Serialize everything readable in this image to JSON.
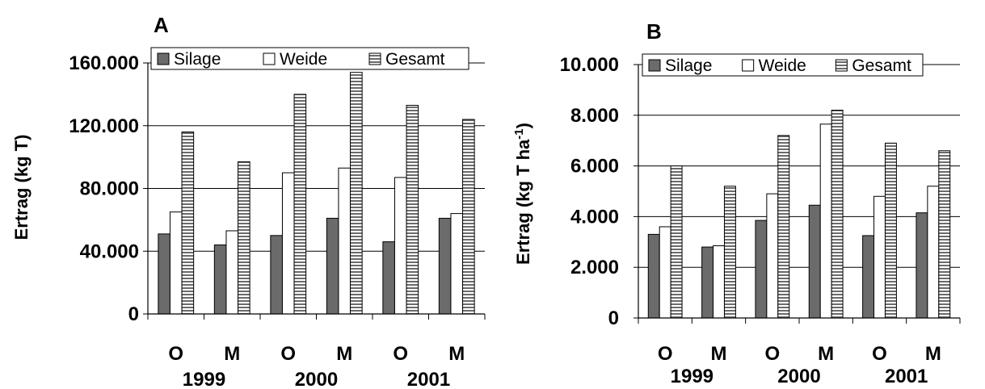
{
  "chart_data": [
    {
      "panel": "A",
      "type": "bar",
      "ylabel": "Ertrag (kg T)",
      "ylim": [
        0,
        160000
      ],
      "yticks": [
        "0",
        "40.000",
        "80.000",
        "120.000",
        "160.000"
      ],
      "ytick_values": [
        0,
        40000,
        80000,
        120000,
        160000
      ],
      "grid": true,
      "legend_position": "top",
      "categories": [
        "O",
        "M",
        "O",
        "M",
        "O",
        "M"
      ],
      "years": [
        "1999",
        "2000",
        "2001"
      ],
      "series": [
        {
          "name": "Silage",
          "color": "#6b6b6b",
          "values": [
            51000,
            44000,
            50000,
            61000,
            46000,
            61000
          ]
        },
        {
          "name": "Weide",
          "color": "#ffffff",
          "values": [
            65000,
            53000,
            90000,
            93000,
            87000,
            64000
          ]
        },
        {
          "name": "Gesamt",
          "color": "#bdbdbd",
          "values": [
            116000,
            97000,
            140000,
            154000,
            133000,
            124000
          ]
        }
      ]
    },
    {
      "panel": "B",
      "type": "bar",
      "ylabel": "Ertrag (kg T ha",
      "ylabel_superscript": "-1",
      "ylabel_suffix": ")",
      "ylim": [
        0,
        10000
      ],
      "yticks": [
        "0",
        "2.000",
        "4.000",
        "6.000",
        "8.000",
        "10.000"
      ],
      "ytick_values": [
        0,
        2000,
        4000,
        6000,
        8000,
        10000
      ],
      "grid": true,
      "legend_position": "top",
      "categories": [
        "O",
        "M",
        "O",
        "M",
        "O",
        "M"
      ],
      "years": [
        "1999",
        "2000",
        "2001"
      ],
      "series": [
        {
          "name": "Silage",
          "color": "#6b6b6b",
          "values": [
            3300,
            2800,
            3850,
            4450,
            3250,
            4150
          ]
        },
        {
          "name": "Weide",
          "color": "#ffffff",
          "values": [
            3600,
            2850,
            4900,
            7650,
            4800,
            5200
          ]
        },
        {
          "name": "Gesamt",
          "color": "#bdbdbd",
          "values": [
            6000,
            5200,
            7200,
            8200,
            6900,
            6600
          ]
        }
      ]
    }
  ]
}
